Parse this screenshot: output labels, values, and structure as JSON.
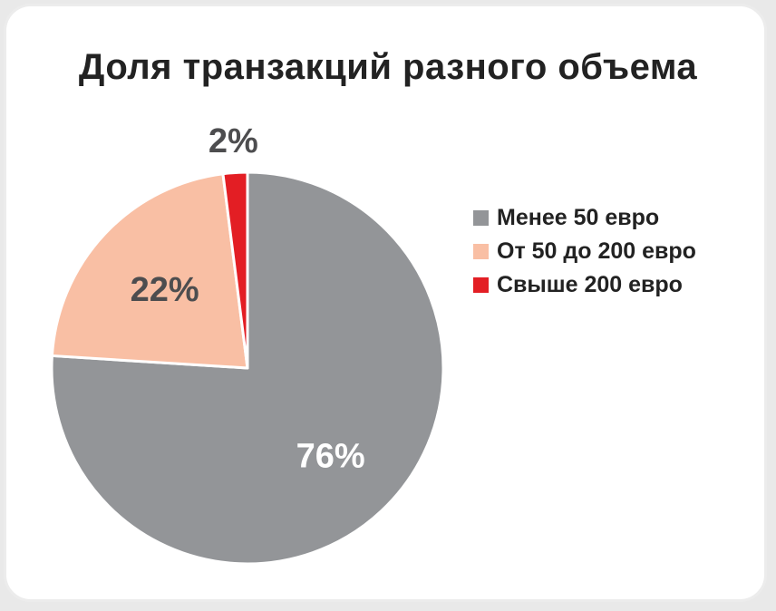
{
  "chart_data": {
    "type": "pie",
    "title": "Доля транзакций разного объема",
    "slices": [
      {
        "label": "Менее 50 евро",
        "value": 76,
        "value_label": "76%",
        "color": "#939598"
      },
      {
        "label": "От 50 до 200 евро",
        "value": 22,
        "value_label": "22%",
        "color": "#f9bfa4"
      },
      {
        "label": "Свыше 200 евро",
        "value": 2,
        "value_label": "2%",
        "color": "#e31e24"
      }
    ],
    "legend_position": "right",
    "label_colors": {
      "on_dark": "#ffffff",
      "on_light": "#4d4d4f"
    }
  }
}
